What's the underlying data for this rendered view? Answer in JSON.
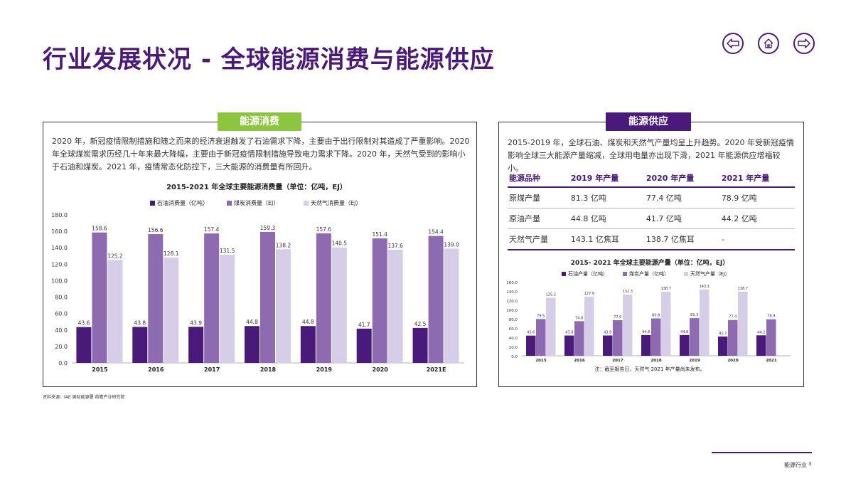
{
  "page": {
    "title": "行业发展状况 - 全球能源消费与能源供应",
    "source": "资料来源：IAE 国际能源署 前瞻产业研究院",
    "footer": "能源行业",
    "page_number": "3"
  },
  "nav": {
    "icons": [
      "arrow-left-icon",
      "home-icon",
      "arrow-right-icon"
    ]
  },
  "colors": {
    "accent": "#4a1a7a",
    "green": "#8cc63f",
    "oil": "#4a1a7a",
    "coal": "#8e6bb0",
    "gas": "#d6cde6"
  },
  "consumption": {
    "tag": "能源消费",
    "text": "2020 年，新冠疫情限制措施和随之而来的经济衰退触发了石油需求下降，主要由于出行限制对其造成了严重影响。2020 年全球煤炭需求历经几十年来最大降幅，主要由于新冠疫情限制措施导致电力需求下降。2020 年，天然气受到的影响小于石油和煤炭。2021 年，疫情常态化防控下，三大能源的消费量有所回升。"
  },
  "supply": {
    "tag": "能源供应",
    "text": "2015-2019 年，全球石油、煤炭和天然气产量均呈上升趋势。2020 年受新冠疫情影响全球三大能源产量缩减，全球用电量亦出现下滑，2021 年能源供应增福较小。",
    "table": {
      "headers": [
        "能源品种",
        "2019 年产量",
        "2020 年产量",
        "2021 年产量"
      ],
      "rows": [
        [
          "原煤产量",
          "81.3 亿吨",
          "77.4 亿吨",
          "78.9 亿吨"
        ],
        [
          "原油产量",
          "44.8 亿吨",
          "41.7 亿吨",
          "44.2 亿吨"
        ],
        [
          "天然气产量",
          "143.1 亿焦耳",
          "138.7 亿焦耳",
          "-"
        ]
      ]
    },
    "note": "注：截至报告日，天然气 2021 年产量尚未发布。"
  },
  "chart_data": [
    {
      "type": "bar",
      "title": "2015-2021 年全球主要能源消费量（单位：亿吨，EJ）",
      "categories": [
        "2015",
        "2016",
        "2017",
        "2018",
        "2019",
        "2020",
        "2021E"
      ],
      "series": [
        {
          "name": "石油消费量（亿吨）",
          "values": [
            43.6,
            43.8,
            43.9,
            44.8,
            44.8,
            41.7,
            42.5
          ]
        },
        {
          "name": "煤炭消费量（EJ）",
          "values": [
            158.6,
            156.6,
            157.4,
            159.3,
            157.6,
            151.4,
            154.4
          ]
        },
        {
          "name": "天然气消费量（EJ）",
          "values": [
            125.2,
            128.1,
            131.5,
            138.2,
            140.5,
            137.6,
            139.0
          ]
        }
      ],
      "value_labels": [
        [
          "43.6",
          "43.8",
          "43.9",
          "44.8",
          "44.8",
          "41.7",
          "42.5"
        ],
        [
          "158.6",
          "156.6",
          "157.4",
          "159.3",
          "157.6",
          "151.4",
          "154.4"
        ],
        [
          "125.2",
          "128.1",
          "131.5",
          "138.2",
          "140.5",
          "137.6",
          "139.0"
        ]
      ],
      "yticks": [
        "0.0",
        "20.0",
        "40.0",
        "60.0",
        "80.0",
        "100.0",
        "120.0",
        "140.0",
        "160.0",
        "180.0"
      ],
      "ylim": [
        0,
        180
      ],
      "grid": false,
      "legend": "top-center"
    },
    {
      "type": "bar",
      "title": "2015- 2021 年全球主要能源产量（单位：亿吨，EJ）",
      "categories": [
        "2015",
        "2016",
        "2017",
        "2018",
        "2019",
        "2020",
        "2021"
      ],
      "series": [
        {
          "name": "石油产量（亿吨）",
          "values": [
            43.6,
            43.8,
            43.9,
            44.8,
            44.8,
            41.7,
            44.2
          ]
        },
        {
          "name": "煤炭产量（亿吨）",
          "values": [
            79.5,
            74.8,
            77.0,
            80.8,
            81.3,
            77.4,
            78.9
          ]
        },
        {
          "name": "天然气产量（EJ）",
          "values": [
            125.2,
            127.9,
            132.3,
            138.7,
            143.1,
            138.7,
            null
          ]
        }
      ],
      "value_labels": [
        [
          "43.6",
          "43.8",
          "43.9",
          "44.8",
          "44.8",
          "41.7",
          "44.2"
        ],
        [
          "79.5",
          "74.8",
          "77.0",
          "80.8",
          "81.3",
          "77.4",
          "78.9"
        ],
        [
          "125.2",
          "127.9",
          "132.3",
          "138.7",
          "143.1",
          "138.7",
          ""
        ]
      ],
      "yticks": [
        "0.0",
        "20.0",
        "40.0",
        "60.0",
        "80.0",
        "100.0",
        "120.0",
        "140.0",
        "160.0"
      ],
      "ylim": [
        0,
        160
      ],
      "grid": false,
      "legend": "top-center"
    }
  ]
}
